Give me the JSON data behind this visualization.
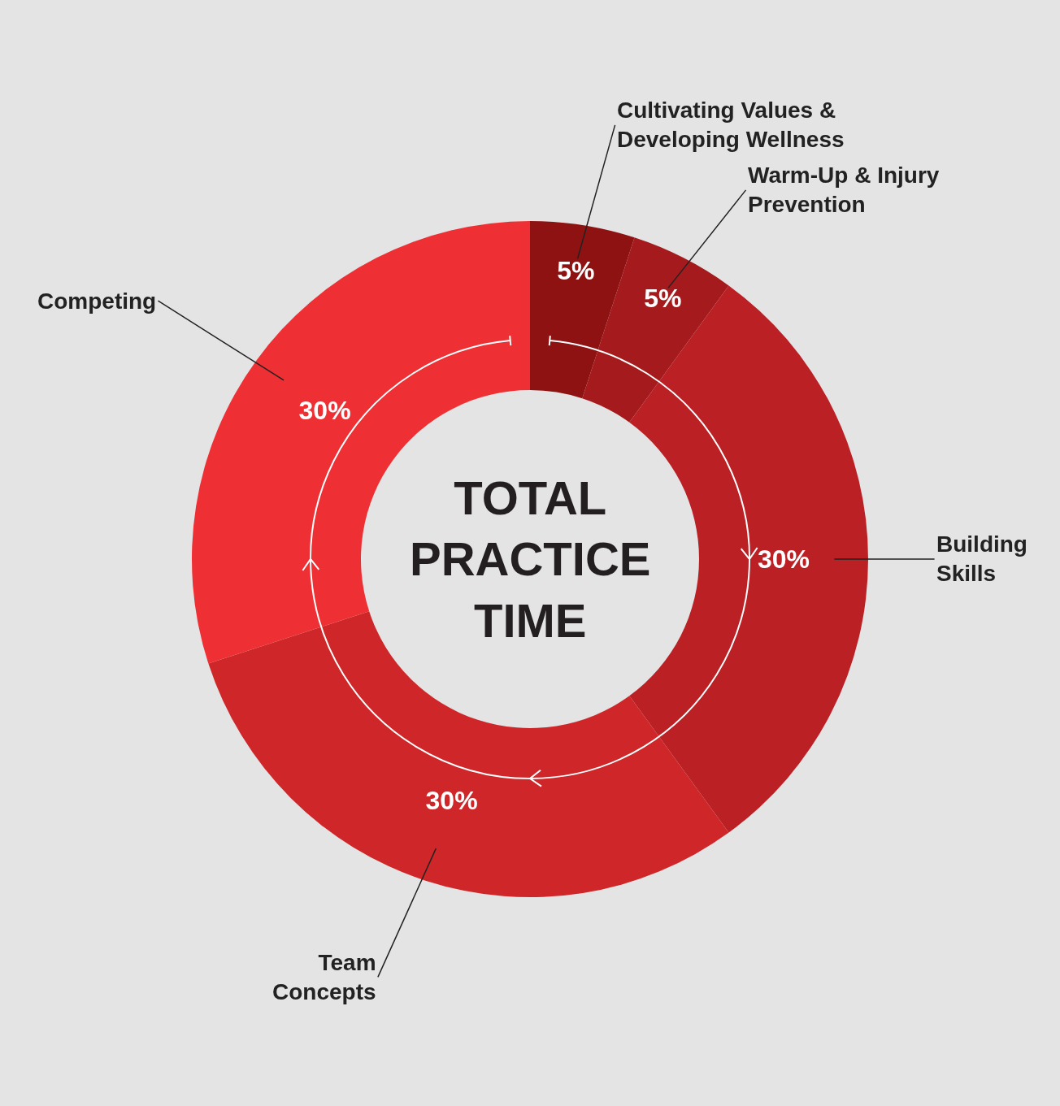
{
  "chart_data": {
    "type": "donut",
    "title": "TOTAL PRACTICE TIME",
    "categories": [
      "Cultivating Values & Developing Wellness",
      "Warm-Up & Injury Prevention",
      "Building Skills",
      "Team Concepts",
      "Competing"
    ],
    "values": [
      5,
      5,
      30,
      30,
      30
    ],
    "value_labels": [
      "5%",
      "5%",
      "30%",
      "30%",
      "30%"
    ],
    "colors": [
      "#8e1212",
      "#a51b1d",
      "#bb2025",
      "#cf2729",
      "#ee3034"
    ],
    "legend": false
  }
}
